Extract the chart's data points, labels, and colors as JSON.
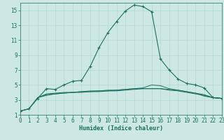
{
  "xlabel": "Humidex (Indice chaleur)",
  "bg_color": "#cde8e4",
  "grid_color": "#b0d8d0",
  "line_color": "#1a7060",
  "xlim": [
    0,
    23
  ],
  "ylim": [
    1,
    16
  ],
  "xticks": [
    0,
    1,
    2,
    3,
    4,
    5,
    6,
    7,
    8,
    9,
    10,
    11,
    12,
    13,
    14,
    15,
    16,
    17,
    18,
    19,
    20,
    21,
    22,
    23
  ],
  "yticks": [
    1,
    3,
    5,
    7,
    9,
    11,
    13,
    15
  ],
  "main_series": {
    "x": [
      0,
      1,
      2,
      3,
      4,
      5,
      6,
      7,
      8,
      9,
      10,
      11,
      12,
      13,
      14,
      15,
      16,
      17,
      18,
      19,
      20,
      21,
      22,
      23
    ],
    "y": [
      1.5,
      1.8,
      3.2,
      4.5,
      4.4,
      5.0,
      5.5,
      5.6,
      7.5,
      10.0,
      12.0,
      13.5,
      14.9,
      15.7,
      15.5,
      14.8,
      8.5,
      7.0,
      5.8,
      5.2,
      5.0,
      4.6,
      3.3,
      3.2
    ]
  },
  "flat_series": [
    {
      "x": [
        0,
        1,
        2,
        3,
        4,
        5,
        6,
        7,
        8,
        9,
        10,
        11,
        12,
        13,
        14,
        15,
        16,
        17,
        18,
        19,
        20,
        21,
        22,
        23
      ],
      "y": [
        1.5,
        1.8,
        3.3,
        3.7,
        3.8,
        3.9,
        4.0,
        4.1,
        4.1,
        4.2,
        4.2,
        4.3,
        4.4,
        4.5,
        4.5,
        4.5,
        4.5,
        4.4,
        4.3,
        4.1,
        3.9,
        3.7,
        3.3,
        3.2
      ]
    },
    {
      "x": [
        0,
        1,
        2,
        3,
        4,
        5,
        6,
        7,
        8,
        9,
        10,
        11,
        12,
        13,
        14,
        15,
        16,
        17,
        18,
        19,
        20,
        21,
        22,
        23
      ],
      "y": [
        1.5,
        1.8,
        3.3,
        3.6,
        3.8,
        3.9,
        4.0,
        4.0,
        4.1,
        4.1,
        4.2,
        4.2,
        4.3,
        4.4,
        4.5,
        4.5,
        4.5,
        4.3,
        4.2,
        4.0,
        3.8,
        3.6,
        3.3,
        3.2
      ]
    },
    {
      "x": [
        2,
        3,
        4,
        5,
        6,
        7,
        8,
        9,
        10,
        11,
        12,
        13,
        14,
        15,
        16,
        17,
        18,
        19,
        20,
        21,
        22,
        23
      ],
      "y": [
        3.3,
        3.8,
        3.9,
        4.0,
        4.0,
        4.1,
        4.2,
        4.2,
        4.3,
        4.3,
        4.4,
        4.5,
        4.6,
        5.0,
        4.9,
        4.5,
        4.3,
        4.1,
        3.9,
        3.5,
        3.3,
        3.2
      ]
    }
  ]
}
